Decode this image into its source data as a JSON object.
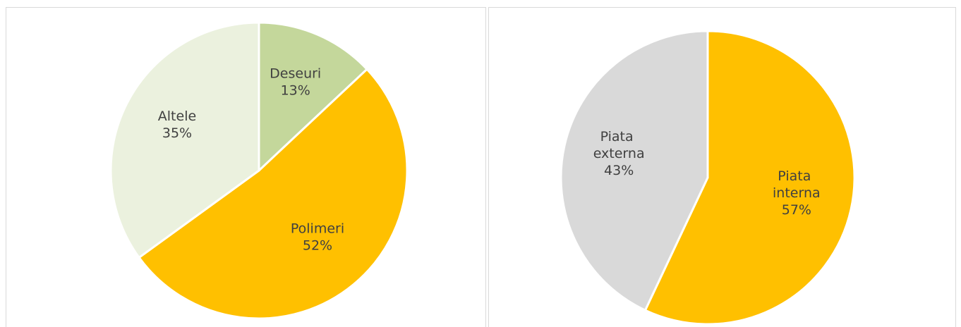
{
  "chart_data": [
    {
      "type": "pie",
      "categories": [
        "Deseuri",
        "Polimeri",
        "Altele"
      ],
      "values": [
        13,
        52,
        35
      ],
      "value_labels": [
        "13%",
        "52%",
        "35%"
      ],
      "colors": [
        "#c4d79b",
        "#ffc000",
        "#ebf1de"
      ]
    },
    {
      "type": "pie",
      "categories": [
        "Piata interna",
        "Piata externa"
      ],
      "values": [
        57,
        43
      ],
      "value_labels": [
        "57%",
        "43%"
      ],
      "colors": [
        "#ffc000",
        "#d9d9d9"
      ]
    }
  ]
}
